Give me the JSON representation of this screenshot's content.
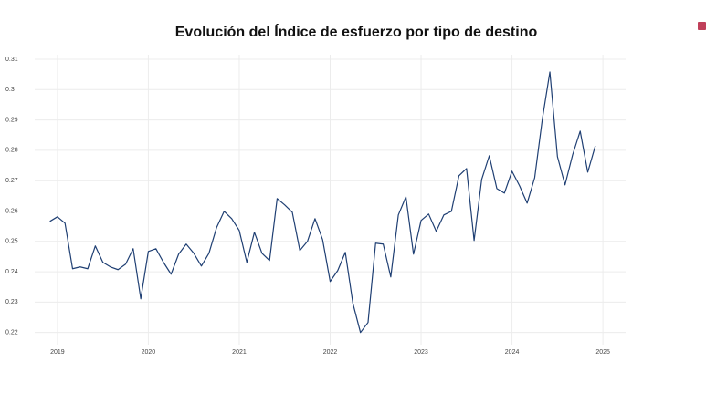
{
  "chart_data": {
    "type": "line",
    "title": "Evolución del Índice de esfuerzo por tipo de destino",
    "x": [
      "2018-12",
      "2019-01",
      "2019-02",
      "2019-03",
      "2019-04",
      "2019-05",
      "2019-06",
      "2019-07",
      "2019-08",
      "2019-09",
      "2019-10",
      "2019-11",
      "2019-12",
      "2020-01",
      "2020-02",
      "2020-03",
      "2020-04",
      "2020-05",
      "2020-06",
      "2020-07",
      "2020-08",
      "2020-09",
      "2020-10",
      "2020-11",
      "2020-12",
      "2021-01",
      "2021-02",
      "2021-03",
      "2021-04",
      "2021-05",
      "2021-06",
      "2021-07",
      "2021-08",
      "2021-09",
      "2021-10",
      "2021-11",
      "2021-12",
      "2022-01",
      "2022-02",
      "2022-03",
      "2022-04",
      "2022-05",
      "2022-06",
      "2022-07",
      "2022-08",
      "2022-09",
      "2022-10",
      "2022-11",
      "2022-12",
      "2023-01",
      "2023-02",
      "2023-03",
      "2023-04",
      "2023-05",
      "2023-06",
      "2023-07",
      "2023-08",
      "2023-09",
      "2023-10",
      "2023-11",
      "2023-12",
      "2024-01",
      "2024-02",
      "2024-03",
      "2024-04",
      "2024-05",
      "2024-06",
      "2024-07",
      "2024-08",
      "2024-09",
      "2024-10",
      "2024-11",
      "2024-12"
    ],
    "series": [
      {
        "color": "#1f3f73",
        "values": [
          0.2566,
          0.2581,
          0.256,
          0.241,
          0.2416,
          0.241,
          0.2485,
          0.2431,
          0.2416,
          0.2407,
          0.2425,
          0.2476,
          0.2311,
          0.2467,
          0.2476,
          0.2431,
          0.2392,
          0.2458,
          0.2491,
          0.2461,
          0.2419,
          0.2461,
          0.2545,
          0.2599,
          0.2575,
          0.2536,
          0.2431,
          0.253,
          0.2461,
          0.2437,
          0.2641,
          0.262,
          0.2596,
          0.247,
          0.25,
          0.2575,
          0.2506,
          0.2368,
          0.2404,
          0.2464,
          0.2296,
          0.22,
          0.2233,
          0.2494,
          0.2491,
          0.2383,
          0.2587,
          0.2647,
          0.2458,
          0.2569,
          0.259,
          0.2533,
          0.2587,
          0.2599,
          0.2716,
          0.274,
          0.2503,
          0.2704,
          0.2782,
          0.2674,
          0.2659,
          0.2731,
          0.2683,
          0.2626,
          0.271,
          0.2902,
          0.3058,
          0.2779,
          0.2686,
          0.2785,
          0.2863,
          0.2728,
          0.2815
        ]
      }
    ],
    "xlim": [
      "2018-10",
      "2025-04"
    ],
    "xticks": [
      {
        "value": "2019-01",
        "label": "2019"
      },
      {
        "value": "2020-01",
        "label": "2020"
      },
      {
        "value": "2021-01",
        "label": "2021"
      },
      {
        "value": "2022-01",
        "label": "2022"
      },
      {
        "value": "2023-01",
        "label": "2023"
      },
      {
        "value": "2024-01",
        "label": "2024"
      },
      {
        "value": "2025-01",
        "label": "2025"
      }
    ],
    "ylim": [
      0.216,
      0.3115
    ],
    "yticks": [
      0.22,
      0.23,
      0.24,
      0.25,
      0.26,
      0.27,
      0.28,
      0.29,
      0.3,
      0.31
    ],
    "grid": true
  }
}
